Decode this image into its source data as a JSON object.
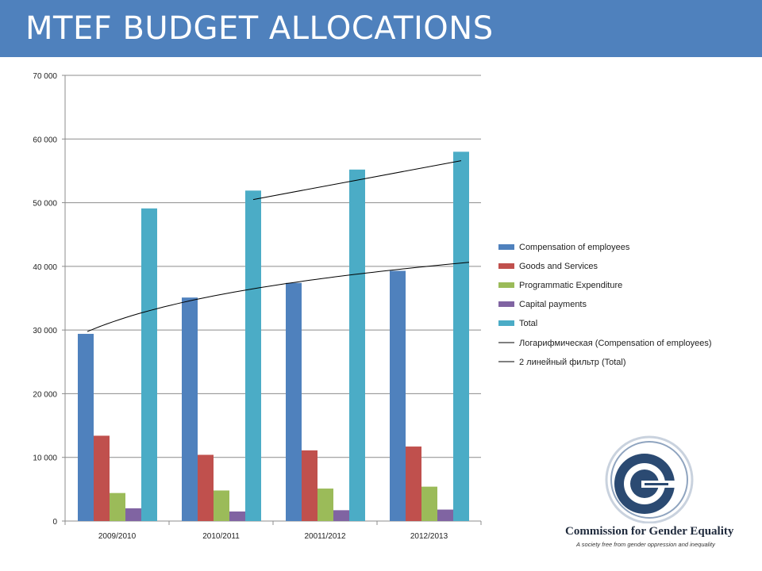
{
  "header": {
    "title": "MTEF BUDGET ALLOCATIONS"
  },
  "colors": {
    "header_bg": "#4f81bd",
    "compensation": "#4f81bd",
    "goods": "#c0504d",
    "programmatic": "#9bbb59",
    "capital": "#8064a2",
    "total": "#4bacc6",
    "trendline": "#000000"
  },
  "chart_data": {
    "type": "bar",
    "categories": [
      "2009/2010",
      "2010/2011",
      "20011/2012",
      "2012/2013"
    ],
    "series": [
      {
        "name": "Compensation of employees",
        "values": [
          29400,
          35100,
          37400,
          39300
        ]
      },
      {
        "name": "Goods and Services",
        "values": [
          13400,
          10400,
          11100,
          11700
        ]
      },
      {
        "name": "Programmatic Expenditure",
        "values": [
          4400,
          4800,
          5100,
          5400
        ]
      },
      {
        "name": "Capital payments",
        "values": [
          2000,
          1500,
          1700,
          1800
        ]
      },
      {
        "name": "Total",
        "values": [
          49100,
          51900,
          55200,
          58000
        ]
      }
    ],
    "trendlines": [
      {
        "name": "Логарифмическая (Compensation of employees)",
        "type": "logarithmic",
        "series": "Compensation of employees"
      },
      {
        "name": "2 линейный фильтр (Total)",
        "type": "moving-average",
        "period": 2,
        "series": "Total"
      }
    ],
    "ylim": [
      0,
      70000
    ],
    "yticks": [
      0,
      10000,
      20000,
      30000,
      40000,
      50000,
      60000,
      70000
    ],
    "ytick_labels": [
      "0",
      "10 000",
      "20 000",
      "30 000",
      "40 000",
      "50 000",
      "60 000",
      "70 000"
    ],
    "grid": true,
    "legend_position": "right"
  },
  "logo": {
    "name": "Commission for Gender Equality",
    "tagline": "A society free from gender oppression and inequality",
    "icon": "cge-logo-icon"
  }
}
